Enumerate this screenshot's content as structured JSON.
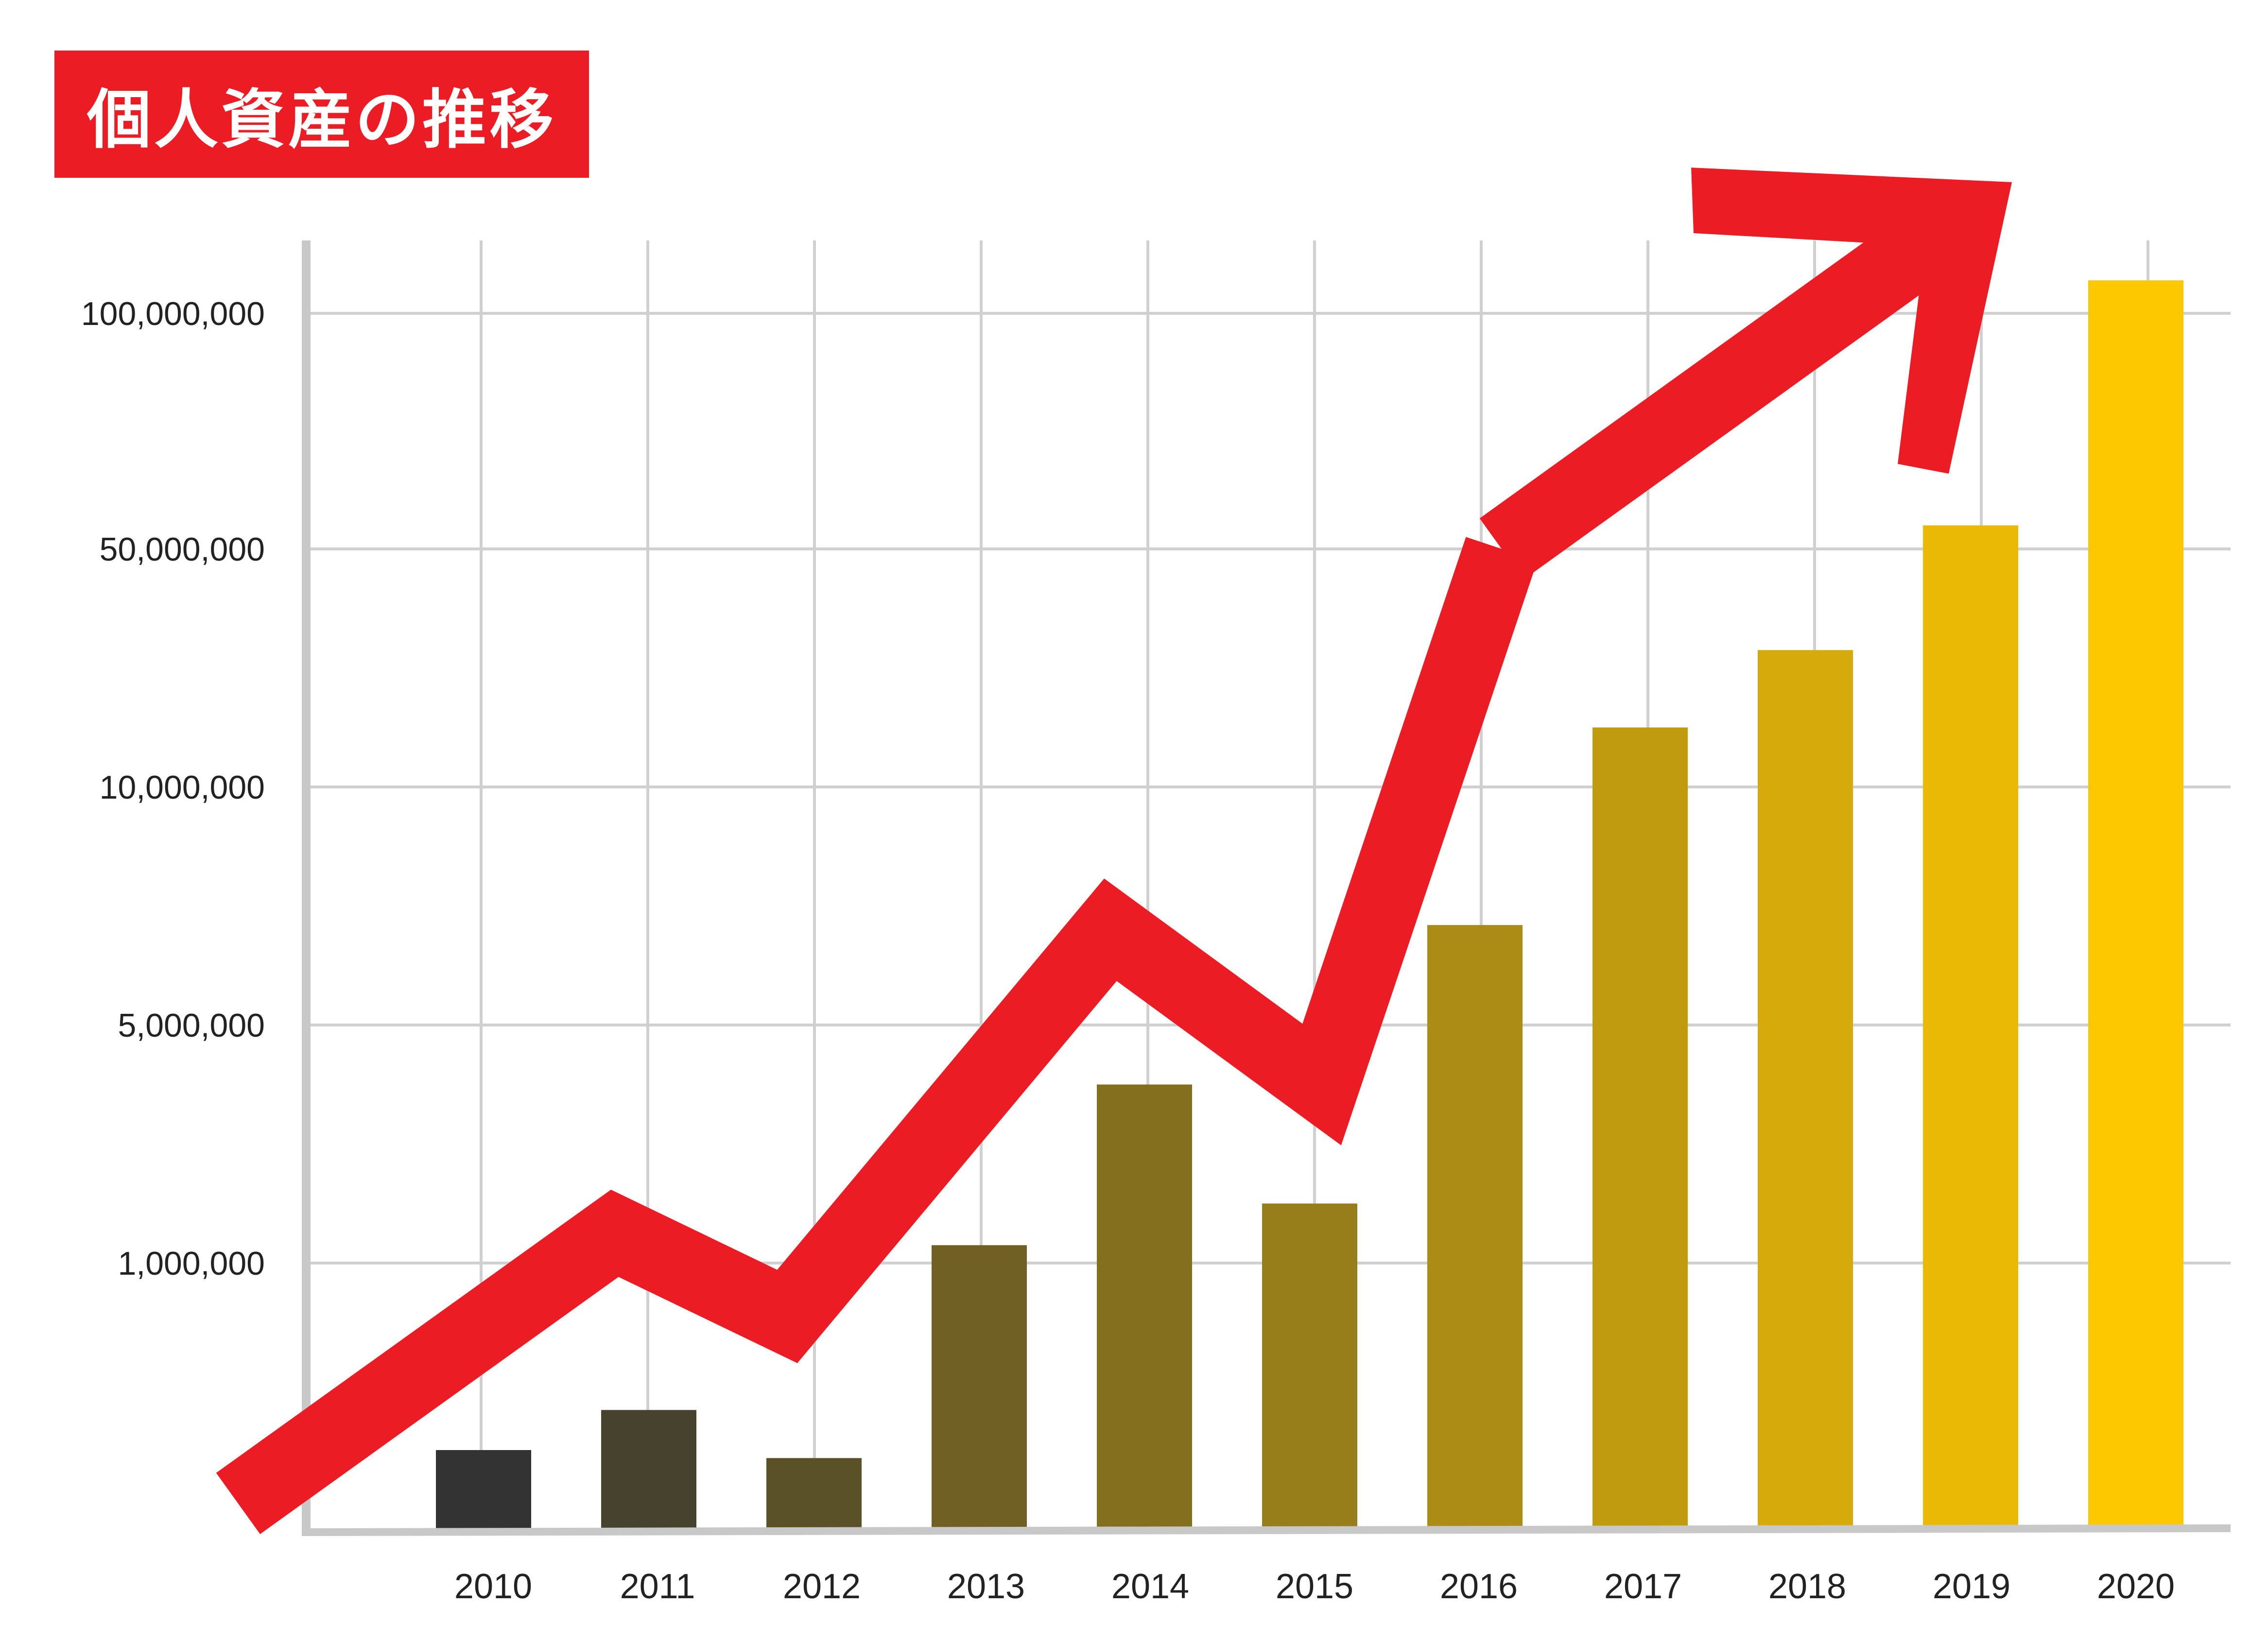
{
  "title": "個人資産の推移",
  "colors": {
    "title_bg": "#ec1c24",
    "arrow": "#ec1c24",
    "grid": "#d0d0d0",
    "axis": "#c8c8c8",
    "bar_start": "#333333",
    "bar_end": "#fdc800"
  },
  "chart_data": {
    "type": "bar",
    "title": "個人資産の推移",
    "xlabel": "",
    "ylabel": "",
    "categories": [
      "2010",
      "2011",
      "2012",
      "2013",
      "2014",
      "2015",
      "2016",
      "2017",
      "2018",
      "2019",
      "2020"
    ],
    "y_ticks": [
      1000000,
      5000000,
      10000000,
      50000000,
      100000000
    ],
    "y_tick_labels": [
      "1,000,000",
      "5,000,000",
      "10,000,000",
      "50,000,000",
      "100,000,000"
    ],
    "y_scale": "nonlinear (equally spaced ticks)",
    "series": [
      {
        "values": [
          300000,
          450000,
          270000,
          1300000,
          4000000,
          2000000,
          7100000,
          20000000,
          33000000,
          55000000,
          107000000
        ]
      }
    ],
    "overlay": {
      "type": "trend-arrow",
      "values": [
        100000,
        1500000,
        800000,
        7000000,
        4000000,
        50000000,
        120000000
      ]
    },
    "grid": true,
    "legend": "none"
  }
}
